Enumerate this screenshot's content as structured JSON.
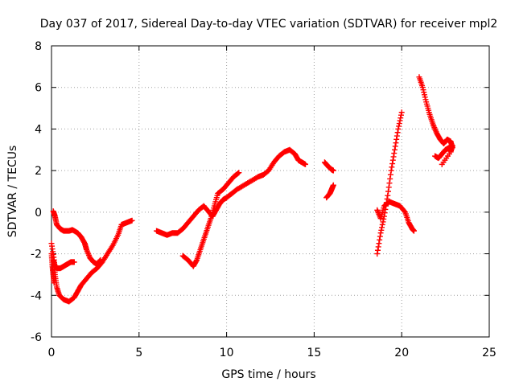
{
  "chart_data": {
    "type": "scatter",
    "title": "Day 037 of 2017, Sidereal Day-to-day VTEC variation (SDTVAR) for receiver mpl2",
    "xlabel": "GPS time / hours",
    "ylabel": "SDTVAR / TECUs",
    "xlim": [
      0,
      25
    ],
    "ylim": [
      -6,
      8
    ],
    "x_ticks": [
      0,
      5,
      10,
      15,
      20,
      25
    ],
    "y_ticks": [
      -6,
      -4,
      -2,
      0,
      2,
      4,
      6,
      8
    ],
    "x_tick_labels": [
      "0",
      "5",
      "10",
      "15",
      "20",
      "25"
    ],
    "y_tick_labels": [
      "-6",
      "-4",
      "-2",
      "0",
      "2",
      "4",
      "6",
      "8"
    ],
    "grid": true,
    "marker": "+",
    "color": "#ff0000",
    "series": [
      {
        "points": [
          [
            0.0,
            -1.5
          ],
          [
            0.15,
            -2.3
          ],
          [
            0.2,
            -3.0
          ],
          [
            0.3,
            -3.6
          ],
          [
            0.45,
            -4.0
          ],
          [
            0.7,
            -4.2
          ],
          [
            1.0,
            -4.3
          ],
          [
            1.3,
            -4.1
          ],
          [
            1.5,
            -3.8
          ],
          [
            1.7,
            -3.5
          ],
          [
            2.0,
            -3.2
          ],
          [
            2.3,
            -2.9
          ],
          [
            2.6,
            -2.7
          ],
          [
            2.9,
            -2.4
          ],
          [
            3.2,
            -2.0
          ],
          [
            3.5,
            -1.6
          ],
          [
            3.8,
            -1.1
          ],
          [
            4.0,
            -0.6
          ],
          [
            4.3,
            -0.5
          ],
          [
            4.6,
            -0.4
          ]
        ]
      },
      {
        "points": [
          [
            0.1,
            -2.3
          ],
          [
            0.2,
            -2.6
          ],
          [
            0.3,
            -2.7
          ],
          [
            0.5,
            -2.7
          ],
          [
            0.7,
            -2.6
          ],
          [
            0.9,
            -2.5
          ],
          [
            1.1,
            -2.4
          ],
          [
            1.3,
            -2.4
          ]
        ]
      },
      {
        "points": [
          [
            0.1,
            0.05
          ],
          [
            0.2,
            -0.2
          ],
          [
            0.3,
            -0.6
          ],
          [
            0.5,
            -0.8
          ],
          [
            0.7,
            -0.9
          ],
          [
            1.0,
            -0.9
          ],
          [
            1.2,
            -0.85
          ],
          [
            1.5,
            -1.0
          ],
          [
            1.7,
            -1.2
          ],
          [
            1.9,
            -1.5
          ],
          [
            2.0,
            -1.8
          ],
          [
            2.2,
            -2.2
          ],
          [
            2.4,
            -2.4
          ],
          [
            2.6,
            -2.5
          ],
          [
            2.8,
            -2.3
          ]
        ]
      },
      {
        "points": [
          [
            0.0,
            -2.0
          ],
          [
            0.05,
            -2.6
          ],
          [
            0.1,
            -3.0
          ],
          [
            0.15,
            -3.4
          ]
        ]
      },
      {
        "points": [
          [
            6.0,
            -0.9
          ],
          [
            6.3,
            -1.0
          ],
          [
            6.6,
            -1.1
          ],
          [
            6.9,
            -1.0
          ],
          [
            7.2,
            -1.0
          ],
          [
            7.5,
            -0.8
          ],
          [
            7.8,
            -0.5
          ],
          [
            8.1,
            -0.2
          ],
          [
            8.4,
            0.1
          ],
          [
            8.7,
            0.3
          ],
          [
            9.0,
            0.0
          ],
          [
            9.2,
            -0.2
          ],
          [
            9.4,
            0.1
          ],
          [
            9.6,
            0.4
          ],
          [
            9.8,
            0.6
          ],
          [
            10.0,
            0.7
          ],
          [
            10.3,
            0.9
          ],
          [
            10.6,
            1.1
          ],
          [
            11.0,
            1.3
          ],
          [
            11.4,
            1.5
          ],
          [
            11.8,
            1.7
          ],
          [
            12.1,
            1.8
          ],
          [
            12.4,
            2.0
          ],
          [
            12.7,
            2.4
          ],
          [
            13.0,
            2.7
          ],
          [
            13.3,
            2.9
          ],
          [
            13.6,
            3.0
          ],
          [
            13.9,
            2.8
          ],
          [
            14.1,
            2.5
          ],
          [
            14.3,
            2.4
          ],
          [
            14.5,
            2.3
          ]
        ]
      },
      {
        "points": [
          [
            7.5,
            -2.1
          ],
          [
            7.8,
            -2.3
          ],
          [
            8.1,
            -2.6
          ],
          [
            8.3,
            -2.3
          ],
          [
            8.5,
            -1.8
          ],
          [
            8.7,
            -1.3
          ],
          [
            8.9,
            -0.8
          ],
          [
            9.1,
            -0.3
          ],
          [
            9.3,
            0.3
          ],
          [
            9.5,
            0.9
          ],
          [
            9.8,
            1.1
          ],
          [
            10.1,
            1.4
          ],
          [
            10.4,
            1.7
          ],
          [
            10.7,
            1.9
          ]
        ]
      },
      {
        "points": [
          [
            15.6,
            2.4
          ],
          [
            15.8,
            2.2
          ],
          [
            16.0,
            2.05
          ],
          [
            16.1,
            2.0
          ]
        ]
      },
      {
        "points": [
          [
            15.7,
            0.7
          ],
          [
            15.9,
            0.9
          ],
          [
            16.0,
            1.1
          ],
          [
            16.1,
            1.3
          ]
        ]
      },
      {
        "points": [
          [
            18.6,
            -2.0
          ],
          [
            18.8,
            -1.0
          ],
          [
            19.0,
            -0.2
          ],
          [
            19.2,
            0.8
          ],
          [
            19.4,
            2.0
          ],
          [
            19.6,
            3.0
          ],
          [
            19.8,
            4.0
          ],
          [
            20.0,
            4.8
          ]
        ]
      },
      {
        "points": [
          [
            18.6,
            0.1
          ],
          [
            18.8,
            -0.3
          ],
          [
            19.0,
            0.3
          ],
          [
            19.3,
            0.5
          ],
          [
            19.6,
            0.4
          ],
          [
            19.9,
            0.3
          ],
          [
            20.2,
            0.0
          ],
          [
            20.4,
            -0.5
          ],
          [
            20.6,
            -0.8
          ],
          [
            20.7,
            -0.9
          ]
        ]
      },
      {
        "points": [
          [
            21.0,
            6.5
          ],
          [
            21.2,
            6.0
          ],
          [
            21.4,
            5.3
          ],
          [
            21.6,
            4.7
          ],
          [
            21.8,
            4.2
          ],
          [
            22.0,
            3.8
          ],
          [
            22.2,
            3.5
          ],
          [
            22.4,
            3.3
          ],
          [
            22.6,
            3.5
          ],
          [
            22.8,
            3.4
          ],
          [
            22.9,
            3.1
          ]
        ]
      },
      {
        "points": [
          [
            21.9,
            2.7
          ],
          [
            22.1,
            2.6
          ],
          [
            22.3,
            2.8
          ],
          [
            22.5,
            3.0
          ],
          [
            22.7,
            3.1
          ],
          [
            22.9,
            3.2
          ],
          [
            22.8,
            2.9
          ],
          [
            22.3,
            2.3
          ]
        ]
      }
    ]
  }
}
